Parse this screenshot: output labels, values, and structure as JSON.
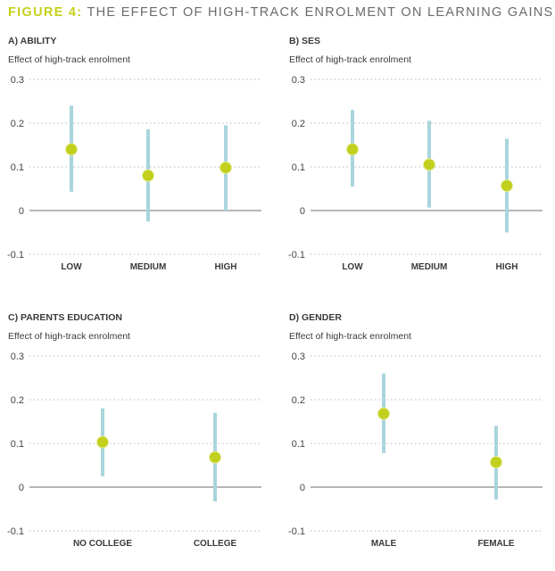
{
  "figure": {
    "title_prefix": "FIGURE 4:",
    "title": " THE EFFECT OF HIGH-TRACK ENROLMENT ON LEARNING GAINS"
  },
  "colors": {
    "accent": "#c5d11a",
    "point": "#c2cf1d",
    "interval": "#a9d5dc",
    "grid": "#b8b8b8",
    "zero_line": "#8a8a8a"
  },
  "chart_data": [
    {
      "type": "scatter",
      "title": "A) ABILITY",
      "ylabel": "Effect of high-track enrolment",
      "ylim": [
        -0.1,
        0.3
      ],
      "yticks": [
        "0.3",
        "0.2",
        "0.1",
        "0",
        "-0.1"
      ],
      "ytick_values": [
        0.3,
        0.2,
        0.1,
        0,
        -0.1
      ],
      "categories": [
        "LOW",
        "MEDIUM",
        "HIGH"
      ],
      "estimates": [
        0.14,
        0.08,
        0.098
      ],
      "ci_low": [
        0.043,
        -0.025,
        0.0
      ],
      "ci_high": [
        0.24,
        0.186,
        0.195
      ],
      "grid": true
    },
    {
      "type": "scatter",
      "title": "B) SES",
      "ylabel": "Effect of high-track enrolment",
      "ylim": [
        -0.1,
        0.3
      ],
      "yticks": [
        "0.3",
        "0.2",
        "0.1",
        "0",
        "-0.1"
      ],
      "ytick_values": [
        0.3,
        0.2,
        0.1,
        0,
        -0.1
      ],
      "categories": [
        "LOW",
        "MEDIUM",
        "HIGH"
      ],
      "estimates": [
        0.14,
        0.105,
        0.057
      ],
      "ci_low": [
        0.055,
        0.007,
        -0.05
      ],
      "ci_high": [
        0.23,
        0.205,
        0.164
      ],
      "grid": true
    },
    {
      "type": "scatter",
      "title": "C) PARENTS EDUCATION",
      "ylabel": "Effect of high-track enrolment",
      "ylim": [
        -0.1,
        0.3
      ],
      "yticks": [
        "0.3",
        "0.2",
        "0.1",
        "0",
        "-0.1"
      ],
      "ytick_values": [
        0.3,
        0.2,
        0.1,
        0,
        -0.1
      ],
      "categories": [
        "NO COLLEGE",
        "COLLEGE"
      ],
      "estimates": [
        0.103,
        0.068
      ],
      "ci_low": [
        0.025,
        -0.033
      ],
      "ci_high": [
        0.18,
        0.17
      ],
      "grid": true
    },
    {
      "type": "scatter",
      "title": "D) GENDER",
      "ylabel": "Effect of high-track enrolment",
      "ylim": [
        -0.1,
        0.3
      ],
      "yticks": [
        "0.3",
        "0.2",
        "0.1",
        "0",
        "-0.1"
      ],
      "ytick_values": [
        0.3,
        0.2,
        0.1,
        0,
        -0.1
      ],
      "categories": [
        "MALE",
        "FEMALE"
      ],
      "estimates": [
        0.168,
        0.057
      ],
      "ci_low": [
        0.078,
        -0.028
      ],
      "ci_high": [
        0.26,
        0.14
      ],
      "grid": true
    }
  ]
}
